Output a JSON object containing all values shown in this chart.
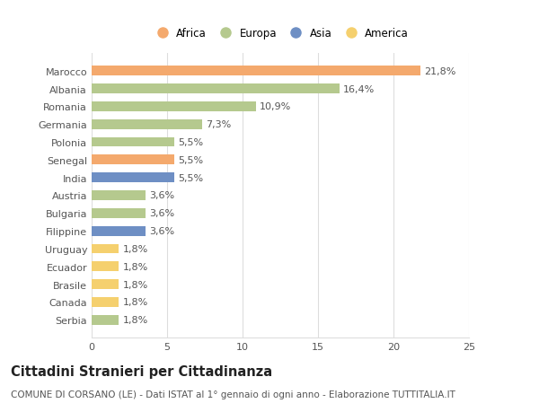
{
  "countries": [
    "Marocco",
    "Albania",
    "Romania",
    "Germania",
    "Polonia",
    "Senegal",
    "India",
    "Austria",
    "Bulgaria",
    "Filippine",
    "Uruguay",
    "Ecuador",
    "Brasile",
    "Canada",
    "Serbia"
  ],
  "values": [
    21.8,
    16.4,
    10.9,
    7.3,
    5.5,
    5.5,
    5.5,
    3.6,
    3.6,
    3.6,
    1.8,
    1.8,
    1.8,
    1.8,
    1.8
  ],
  "labels": [
    "21,8%",
    "16,4%",
    "10,9%",
    "7,3%",
    "5,5%",
    "5,5%",
    "5,5%",
    "3,6%",
    "3,6%",
    "3,6%",
    "1,8%",
    "1,8%",
    "1,8%",
    "1,8%",
    "1,8%"
  ],
  "continents": [
    "Africa",
    "Europa",
    "Europa",
    "Europa",
    "Europa",
    "Africa",
    "Asia",
    "Europa",
    "Europa",
    "Asia",
    "America",
    "America",
    "America",
    "America",
    "Europa"
  ],
  "colors": {
    "Africa": "#F4A96D",
    "Europa": "#B5C98E",
    "Asia": "#6E8FC4",
    "America": "#F5D06E"
  },
  "legend_order": [
    "Africa",
    "Europa",
    "Asia",
    "America"
  ],
  "xlim": [
    0,
    25
  ],
  "xticks": [
    0,
    5,
    10,
    15,
    20,
    25
  ],
  "title": "Cittadini Stranieri per Cittadinanza",
  "subtitle": "COMUNE DI CORSANO (LE) - Dati ISTAT al 1° gennaio di ogni anno - Elaborazione TUTTITALIA.IT",
  "background_color": "#ffffff",
  "grid_color": "#dddddd",
  "bar_height": 0.55,
  "label_fontsize": 8,
  "title_fontsize": 10.5,
  "subtitle_fontsize": 7.5,
  "tick_fontsize": 8
}
